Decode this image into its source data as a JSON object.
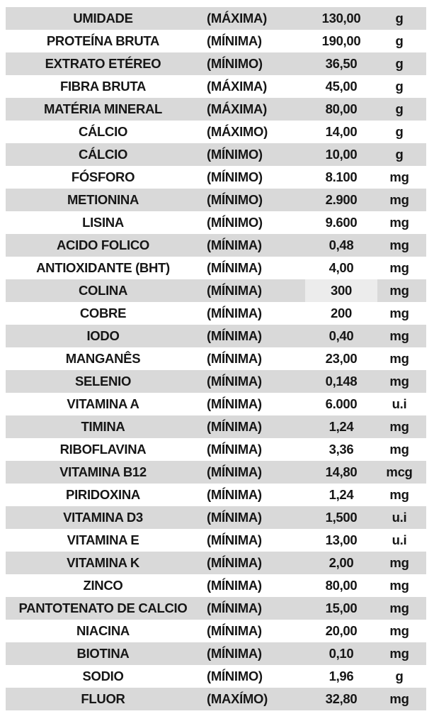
{
  "colors": {
    "stripe": "#d9d9d9",
    "background": "#ffffff",
    "text": "#161616",
    "value_highlight": "#ececec"
  },
  "table": {
    "rows": [
      {
        "name": "UMIDADE",
        "qualifier": "(MÁXIMA)",
        "value": "130,00",
        "unit": "g"
      },
      {
        "name": "PROTEÍNA BRUTA",
        "qualifier": "(MÍNIMA)",
        "value": "190,00",
        "unit": "g"
      },
      {
        "name": "EXTRATO ETÉREO",
        "qualifier": "(MÍNIMO)",
        "value": "36,50",
        "unit": "g"
      },
      {
        "name": "FIBRA BRUTA",
        "qualifier": "(MÁXIMA)",
        "value": "45,00",
        "unit": "g"
      },
      {
        "name": "MATÉRIA MINERAL",
        "qualifier": "(MÁXIMA)",
        "value": "80,00",
        "unit": "g"
      },
      {
        "name": "CÁLCIO",
        "qualifier": "(MÁXIMO)",
        "value": "14,00",
        "unit": "g"
      },
      {
        "name": "CÁLCIO",
        "qualifier": "(MÍNIMO)",
        "value": "10,00",
        "unit": "g"
      },
      {
        "name": "FÓSFORO",
        "qualifier": "(MÍNIMO)",
        "value": "8.100",
        "unit": "mg"
      },
      {
        "name": "METIONINA",
        "qualifier": "(MÍNIMO)",
        "value": "2.900",
        "unit": "mg"
      },
      {
        "name": "LISINA",
        "qualifier": "(MÍNIMO)",
        "value": "9.600",
        "unit": "mg"
      },
      {
        "name": "ACIDO FOLICO",
        "qualifier": "(MÍNIMA)",
        "value": "0,48",
        "unit": "mg"
      },
      {
        "name": "ANTIOXIDANTE (BHT)",
        "qualifier": "(MÍNIMA)",
        "value": "4,00",
        "unit": "mg"
      },
      {
        "name": "COLINA",
        "qualifier": "(MÍNIMA)",
        "value": "300",
        "unit": "mg",
        "value_highlight": true
      },
      {
        "name": "COBRE",
        "qualifier": "(MÍNIMA)",
        "value": "200",
        "unit": "mg"
      },
      {
        "name": "IODO",
        "qualifier": "(MÍNIMA)",
        "value": "0,40",
        "unit": "mg"
      },
      {
        "name": "MANGANÊS",
        "qualifier": "(MÍNIMA)",
        "value": "23,00",
        "unit": "mg"
      },
      {
        "name": "SELENIO",
        "qualifier": "(MÍNIMA)",
        "value": "0,148",
        "unit": "mg"
      },
      {
        "name": "VITAMINA A",
        "qualifier": "(MÍNIMA)",
        "value": "6.000",
        "unit": "u.i"
      },
      {
        "name": "TIMINA",
        "qualifier": "(MÍNIMA)",
        "value": "1,24",
        "unit": "mg"
      },
      {
        "name": "RIBOFLAVINA",
        "qualifier": "(MÍNIMA)",
        "value": "3,36",
        "unit": "mg"
      },
      {
        "name": "VITAMINA B12",
        "qualifier": "(MÍNIMA)",
        "value": "14,80",
        "unit": "mcg"
      },
      {
        "name": "PIRIDOXINA",
        "qualifier": "(MÍNIMA)",
        "value": "1,24",
        "unit": "mg"
      },
      {
        "name": "VITAMINA D3",
        "qualifier": "(MÍNIMA)",
        "value": "1,500",
        "unit": "u.i"
      },
      {
        "name": "VITAMINA E",
        "qualifier": "(MÍNIMA)",
        "value": "13,00",
        "unit": "u.i"
      },
      {
        "name": "VITAMINA K",
        "qualifier": "(MÍNIMA)",
        "value": "2,00",
        "unit": "mg"
      },
      {
        "name": "ZINCO",
        "qualifier": "(MÍNIMA)",
        "value": "80,00",
        "unit": "mg"
      },
      {
        "name": "PANTOTENATO DE CALCIO",
        "qualifier": "(MÍNIMA)",
        "value": "15,00",
        "unit": "mg"
      },
      {
        "name": "NIACINA",
        "qualifier": "(MÍNIMA)",
        "value": "20,00",
        "unit": "mg"
      },
      {
        "name": "BIOTINA",
        "qualifier": "(MÍNIMA)",
        "value": "0,10",
        "unit": "mg"
      },
      {
        "name": "SODIO",
        "qualifier": "(MÍNIMO)",
        "value": "1,96",
        "unit": "g"
      },
      {
        "name": "FLUOR",
        "qualifier": "(MAXÍMO)",
        "value": "32,80",
        "unit": "mg"
      }
    ]
  }
}
